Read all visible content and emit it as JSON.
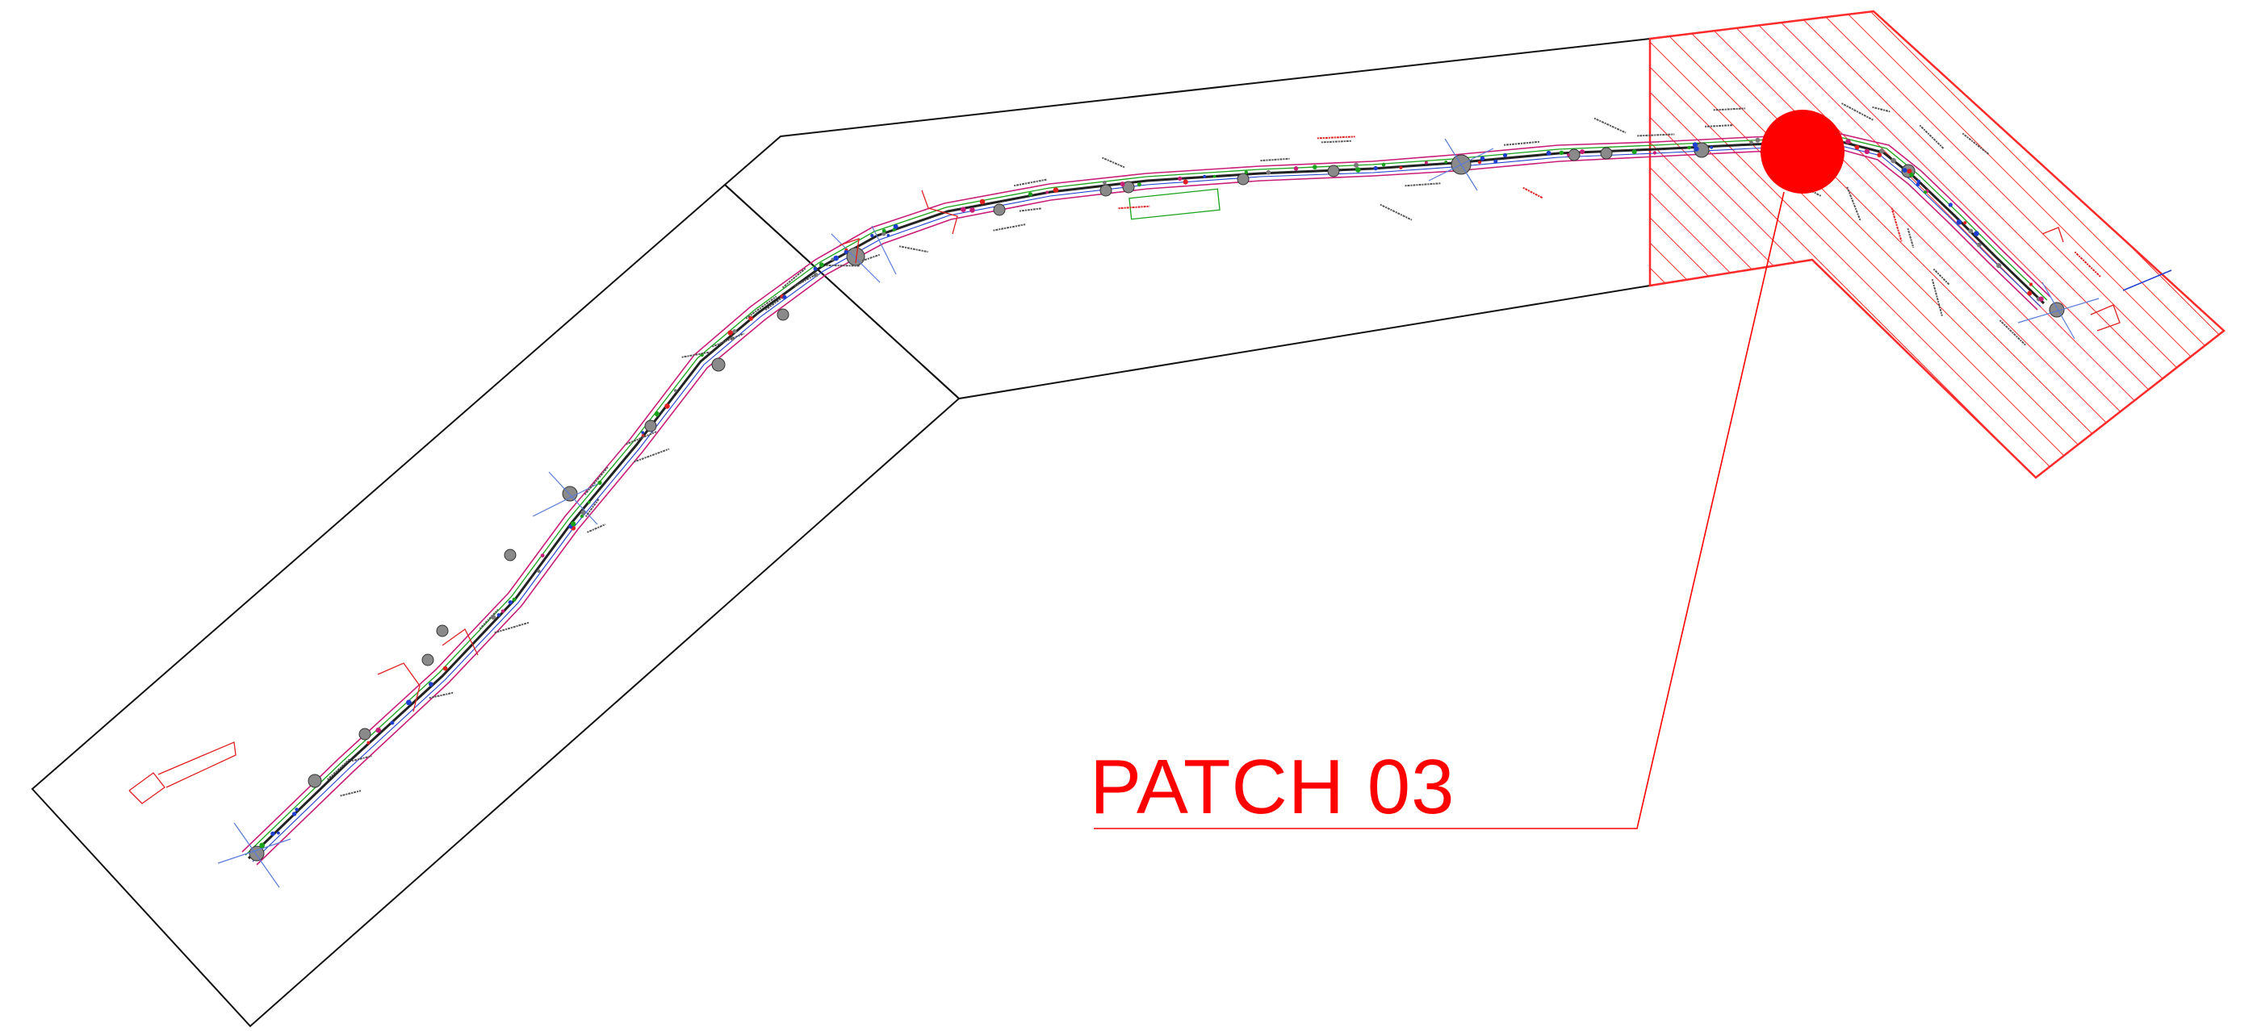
{
  "drawing": {
    "callout_label": "PATCH 03",
    "highlight_color": "#ff0000",
    "route_color": "#222222",
    "boundary_color": "#111111",
    "hatch_color": "#ff2a2a",
    "annotation_color": "#ff0000",
    "service_colors": [
      "#1aa31a",
      "#c81e78",
      "#1f3fd1",
      "#e02020",
      "#7a7a7a"
    ]
  }
}
